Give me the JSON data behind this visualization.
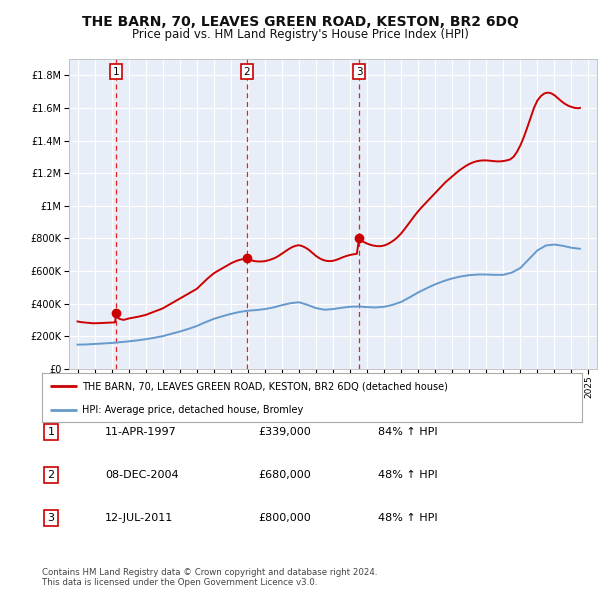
{
  "title": "THE BARN, 70, LEAVES GREEN ROAD, KESTON, BR2 6DQ",
  "subtitle": "Price paid vs. HM Land Registry's House Price Index (HPI)",
  "title_fontsize": 10,
  "subtitle_fontsize": 8.5,
  "red_line_label": "THE BARN, 70, LEAVES GREEN ROAD, KESTON, BR2 6DQ (detached house)",
  "blue_line_label": "HPI: Average price, detached house, Bromley",
  "sale_points": [
    {
      "label": "1",
      "date_x": 1997.28,
      "price": 339000
    },
    {
      "label": "2",
      "date_x": 2004.93,
      "price": 680000
    },
    {
      "label": "3",
      "date_x": 2011.53,
      "price": 800000
    }
  ],
  "table_rows": [
    {
      "num": "1",
      "date": "11-APR-1997",
      "price": "£339,000",
      "change": "84% ↑ HPI"
    },
    {
      "num": "2",
      "date": "08-DEC-2004",
      "price": "£680,000",
      "change": "48% ↑ HPI"
    },
    {
      "num": "3",
      "date": "12-JUL-2011",
      "price": "£800,000",
      "change": "48% ↑ HPI"
    }
  ],
  "footer": "Contains HM Land Registry data © Crown copyright and database right 2024.\nThis data is licensed under the Open Government Licence v3.0.",
  "ylim": [
    0,
    1900000
  ],
  "xlim": [
    1994.5,
    2025.5
  ],
  "yticks": [
    0,
    200000,
    400000,
    600000,
    800000,
    1000000,
    1200000,
    1400000,
    1600000,
    1800000
  ],
  "ytick_labels": [
    "£0",
    "£200K",
    "£400K",
    "£600K",
    "£800K",
    "£1M",
    "£1.2M",
    "£1.4M",
    "£1.6M",
    "£1.8M"
  ],
  "xticks": [
    1995,
    1996,
    1997,
    1998,
    1999,
    2000,
    2001,
    2002,
    2003,
    2004,
    2005,
    2006,
    2007,
    2008,
    2009,
    2010,
    2011,
    2012,
    2013,
    2014,
    2015,
    2016,
    2017,
    2018,
    2019,
    2020,
    2021,
    2022,
    2023,
    2024,
    2025
  ],
  "red_color": "#cc0000",
  "blue_color": "#6699cc",
  "dashed_color": "#dd0000",
  "plot_bg": "#e8eef8",
  "grid_color": "#ffffff",
  "red_data": [
    [
      1995.0,
      290000
    ],
    [
      1995.1,
      288000
    ],
    [
      1995.2,
      286000
    ],
    [
      1995.3,
      285000
    ],
    [
      1995.4,
      284000
    ],
    [
      1995.5,
      283000
    ],
    [
      1995.6,
      282000
    ],
    [
      1995.7,
      281000
    ],
    [
      1995.8,
      280000
    ],
    [
      1995.9,
      279000
    ],
    [
      1996.0,
      279000
    ],
    [
      1996.1,
      279000
    ],
    [
      1996.2,
      279500
    ],
    [
      1996.3,
      280000
    ],
    [
      1996.4,
      280500
    ],
    [
      1996.5,
      281000
    ],
    [
      1996.6,
      281500
    ],
    [
      1996.7,
      282000
    ],
    [
      1996.8,
      282500
    ],
    [
      1996.9,
      283000
    ],
    [
      1997.0,
      283500
    ],
    [
      1997.1,
      284000
    ],
    [
      1997.2,
      284500
    ],
    [
      1997.28,
      339000
    ],
    [
      1997.3,
      320000
    ],
    [
      1997.4,
      310000
    ],
    [
      1997.5,
      305000
    ],
    [
      1997.6,
      302000
    ],
    [
      1997.7,
      300000
    ],
    [
      1997.8,
      302000
    ],
    [
      1997.9,
      305000
    ],
    [
      1998.0,
      308000
    ],
    [
      1998.2,
      312000
    ],
    [
      1998.4,
      316000
    ],
    [
      1998.6,
      320000
    ],
    [
      1998.8,
      325000
    ],
    [
      1999.0,
      330000
    ],
    [
      1999.2,
      338000
    ],
    [
      1999.4,
      346000
    ],
    [
      1999.6,
      354000
    ],
    [
      1999.8,
      362000
    ],
    [
      2000.0,
      370000
    ],
    [
      2000.2,
      382000
    ],
    [
      2000.4,
      394000
    ],
    [
      2000.6,
      406000
    ],
    [
      2000.8,
      418000
    ],
    [
      2001.0,
      430000
    ],
    [
      2001.2,
      442000
    ],
    [
      2001.4,
      454000
    ],
    [
      2001.6,
      466000
    ],
    [
      2001.8,
      478000
    ],
    [
      2002.0,
      490000
    ],
    [
      2002.2,
      510000
    ],
    [
      2002.4,
      530000
    ],
    [
      2002.6,
      550000
    ],
    [
      2002.8,
      568000
    ],
    [
      2003.0,
      585000
    ],
    [
      2003.2,
      598000
    ],
    [
      2003.4,
      610000
    ],
    [
      2003.6,
      622000
    ],
    [
      2003.8,
      634000
    ],
    [
      2004.0,
      646000
    ],
    [
      2004.2,
      656000
    ],
    [
      2004.4,
      664000
    ],
    [
      2004.6,
      670000
    ],
    [
      2004.8,
      674000
    ],
    [
      2004.93,
      680000
    ],
    [
      2005.0,
      672000
    ],
    [
      2005.2,
      665000
    ],
    [
      2005.4,
      660000
    ],
    [
      2005.6,
      658000
    ],
    [
      2005.8,
      658000
    ],
    [
      2006.0,
      660000
    ],
    [
      2006.2,
      665000
    ],
    [
      2006.4,
      672000
    ],
    [
      2006.6,
      680000
    ],
    [
      2006.8,
      692000
    ],
    [
      2007.0,
      706000
    ],
    [
      2007.2,
      720000
    ],
    [
      2007.4,
      734000
    ],
    [
      2007.6,
      746000
    ],
    [
      2007.8,
      754000
    ],
    [
      2008.0,
      758000
    ],
    [
      2008.2,
      752000
    ],
    [
      2008.4,
      742000
    ],
    [
      2008.6,
      728000
    ],
    [
      2008.8,
      710000
    ],
    [
      2009.0,
      692000
    ],
    [
      2009.2,
      678000
    ],
    [
      2009.4,
      668000
    ],
    [
      2009.6,
      662000
    ],
    [
      2009.8,
      660000
    ],
    [
      2010.0,
      662000
    ],
    [
      2010.2,
      668000
    ],
    [
      2010.4,
      676000
    ],
    [
      2010.6,
      685000
    ],
    [
      2010.8,
      692000
    ],
    [
      2011.0,
      698000
    ],
    [
      2011.2,
      702000
    ],
    [
      2011.4,
      705000
    ],
    [
      2011.53,
      800000
    ],
    [
      2011.6,
      790000
    ],
    [
      2011.8,
      778000
    ],
    [
      2012.0,
      768000
    ],
    [
      2012.2,
      760000
    ],
    [
      2012.4,
      755000
    ],
    [
      2012.6,
      752000
    ],
    [
      2012.8,
      752000
    ],
    [
      2013.0,
      756000
    ],
    [
      2013.2,
      764000
    ],
    [
      2013.4,
      776000
    ],
    [
      2013.6,
      790000
    ],
    [
      2013.8,
      808000
    ],
    [
      2014.0,
      830000
    ],
    [
      2014.2,
      856000
    ],
    [
      2014.4,
      884000
    ],
    [
      2014.6,
      912000
    ],
    [
      2014.8,
      940000
    ],
    [
      2015.0,
      966000
    ],
    [
      2015.2,
      990000
    ],
    [
      2015.4,
      1012000
    ],
    [
      2015.6,
      1034000
    ],
    [
      2015.8,
      1056000
    ],
    [
      2016.0,
      1078000
    ],
    [
      2016.2,
      1100000
    ],
    [
      2016.4,
      1122000
    ],
    [
      2016.6,
      1144000
    ],
    [
      2016.8,
      1162000
    ],
    [
      2017.0,
      1180000
    ],
    [
      2017.2,
      1198000
    ],
    [
      2017.4,
      1215000
    ],
    [
      2017.6,
      1230000
    ],
    [
      2017.8,
      1244000
    ],
    [
      2018.0,
      1256000
    ],
    [
      2018.2,
      1265000
    ],
    [
      2018.4,
      1272000
    ],
    [
      2018.6,
      1276000
    ],
    [
      2018.8,
      1278000
    ],
    [
      2019.0,
      1278000
    ],
    [
      2019.2,
      1276000
    ],
    [
      2019.4,
      1274000
    ],
    [
      2019.6,
      1272000
    ],
    [
      2019.8,
      1272000
    ],
    [
      2020.0,
      1274000
    ],
    [
      2020.2,
      1278000
    ],
    [
      2020.4,
      1284000
    ],
    [
      2020.6,
      1300000
    ],
    [
      2020.8,
      1330000
    ],
    [
      2021.0,
      1370000
    ],
    [
      2021.2,
      1420000
    ],
    [
      2021.4,
      1478000
    ],
    [
      2021.6,
      1540000
    ],
    [
      2021.8,
      1600000
    ],
    [
      2022.0,
      1645000
    ],
    [
      2022.2,
      1672000
    ],
    [
      2022.4,
      1688000
    ],
    [
      2022.6,
      1694000
    ],
    [
      2022.8,
      1690000
    ],
    [
      2023.0,
      1678000
    ],
    [
      2023.2,
      1660000
    ],
    [
      2023.4,
      1642000
    ],
    [
      2023.6,
      1626000
    ],
    [
      2023.8,
      1614000
    ],
    [
      2024.0,
      1606000
    ],
    [
      2024.2,
      1600000
    ],
    [
      2024.4,
      1598000
    ],
    [
      2024.5,
      1600000
    ]
  ],
  "blue_data": [
    [
      1995.0,
      148000
    ],
    [
      1995.5,
      149000
    ],
    [
      1996.0,
      152000
    ],
    [
      1996.5,
      155000
    ],
    [
      1997.0,
      158000
    ],
    [
      1997.5,
      163000
    ],
    [
      1998.0,
      168000
    ],
    [
      1998.5,
      174000
    ],
    [
      1999.0,
      181000
    ],
    [
      1999.5,
      190000
    ],
    [
      2000.0,
      200000
    ],
    [
      2000.5,
      214000
    ],
    [
      2001.0,
      228000
    ],
    [
      2001.5,
      244000
    ],
    [
      2002.0,
      262000
    ],
    [
      2002.5,
      285000
    ],
    [
      2003.0,
      306000
    ],
    [
      2003.5,
      322000
    ],
    [
      2004.0,
      336000
    ],
    [
      2004.5,
      348000
    ],
    [
      2005.0,
      356000
    ],
    [
      2005.5,
      360000
    ],
    [
      2006.0,
      366000
    ],
    [
      2006.5,
      376000
    ],
    [
      2007.0,
      390000
    ],
    [
      2007.5,
      402000
    ],
    [
      2008.0,
      408000
    ],
    [
      2008.5,
      392000
    ],
    [
      2009.0,
      372000
    ],
    [
      2009.5,
      362000
    ],
    [
      2010.0,
      366000
    ],
    [
      2010.5,
      374000
    ],
    [
      2011.0,
      380000
    ],
    [
      2011.5,
      382000
    ],
    [
      2012.0,
      378000
    ],
    [
      2012.5,
      376000
    ],
    [
      2013.0,
      380000
    ],
    [
      2013.5,
      392000
    ],
    [
      2014.0,
      410000
    ],
    [
      2014.5,
      438000
    ],
    [
      2015.0,
      468000
    ],
    [
      2015.5,
      494000
    ],
    [
      2016.0,
      518000
    ],
    [
      2016.5,
      538000
    ],
    [
      2017.0,
      554000
    ],
    [
      2017.5,
      566000
    ],
    [
      2018.0,
      574000
    ],
    [
      2018.5,
      578000
    ],
    [
      2019.0,
      578000
    ],
    [
      2019.5,
      576000
    ],
    [
      2020.0,
      576000
    ],
    [
      2020.5,
      590000
    ],
    [
      2021.0,
      618000
    ],
    [
      2021.5,
      672000
    ],
    [
      2022.0,
      726000
    ],
    [
      2022.5,
      756000
    ],
    [
      2023.0,
      762000
    ],
    [
      2023.5,
      754000
    ],
    [
      2024.0,
      742000
    ],
    [
      2024.5,
      736000
    ]
  ]
}
